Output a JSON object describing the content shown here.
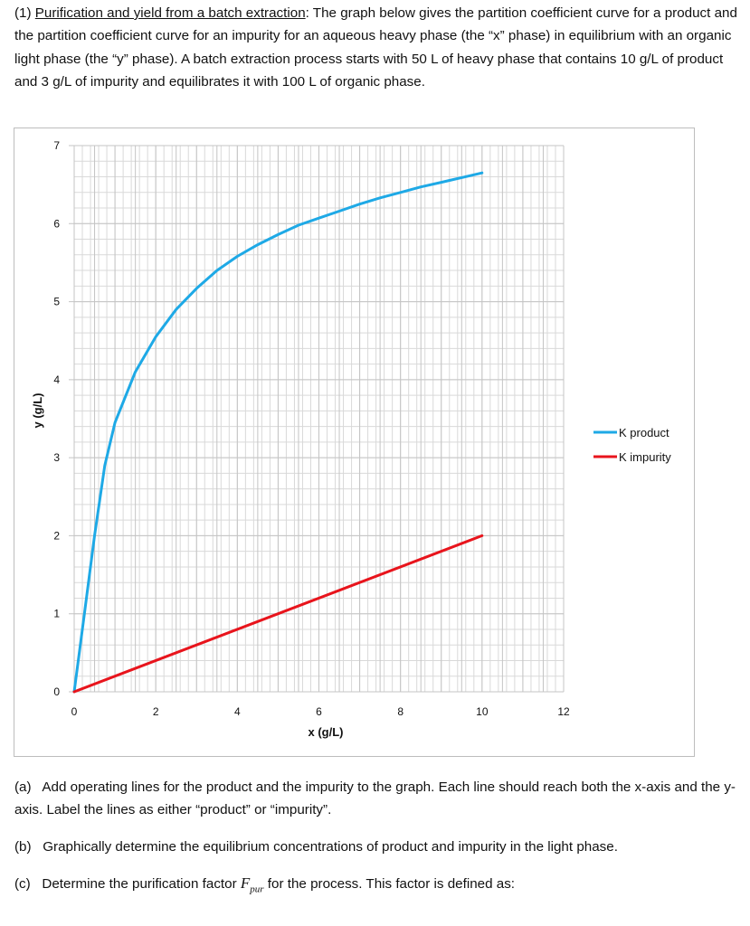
{
  "problem": {
    "number": "(1)",
    "title": "Purification and yield from a batch extraction",
    "text": ": The graph below gives the partition coefficient curve for a product and the partition coefficient curve for an impurity for an aqueous heavy phase (the “x” phase) in equilibrium with an organic light phase (the “y” phase). A batch extraction process starts with 50 L of heavy phase that contains 10 g/L of product and 3 g/L of impurity and equilibrates it with 100 L of organic phase."
  },
  "chart_data": {
    "type": "line",
    "xlabel": "x (g/L)",
    "ylabel": "y (g/L)",
    "xlim": [
      0,
      12
    ],
    "ylim": [
      0,
      7
    ],
    "xticks": [
      0,
      2,
      4,
      6,
      8,
      10,
      12
    ],
    "yticks": [
      0,
      1,
      2,
      3,
      4,
      5,
      6,
      7
    ],
    "grid": true,
    "legend_position": "right",
    "series": [
      {
        "name": "K product",
        "color": "#1ea9e6",
        "x": [
          0,
          0.25,
          0.5,
          0.75,
          1,
          1.5,
          2,
          2.5,
          3,
          3.5,
          4,
          4.5,
          5,
          5.5,
          6,
          6.5,
          7,
          7.5,
          8,
          8.5,
          9,
          9.5,
          10
        ],
        "y": [
          0,
          1.0,
          2.0,
          2.9,
          3.45,
          4.1,
          4.55,
          4.9,
          5.17,
          5.4,
          5.58,
          5.73,
          5.86,
          5.98,
          6.07,
          6.16,
          6.25,
          6.33,
          6.4,
          6.47,
          6.53,
          6.59,
          6.65
        ]
      },
      {
        "name": "K impurity",
        "color": "#e8141c",
        "x": [
          0,
          10
        ],
        "y": [
          0,
          2.0
        ]
      }
    ]
  },
  "questions": {
    "a": {
      "label": "(a)",
      "text": "Add operating lines for the product and the impurity to the graph. Each line should reach both the x-axis and the y-axis. Label the lines as either “product” or “impurity”."
    },
    "b": {
      "label": "(b)",
      "text": "Graphically determine the equilibrium concentrations of product and impurity in the light phase."
    },
    "c": {
      "label": "(c)",
      "text_before": "Determine the purification factor",
      "symbol": "F",
      "symbol_sub": "pur",
      "text_after": "for the process. This factor is defined as:"
    }
  }
}
